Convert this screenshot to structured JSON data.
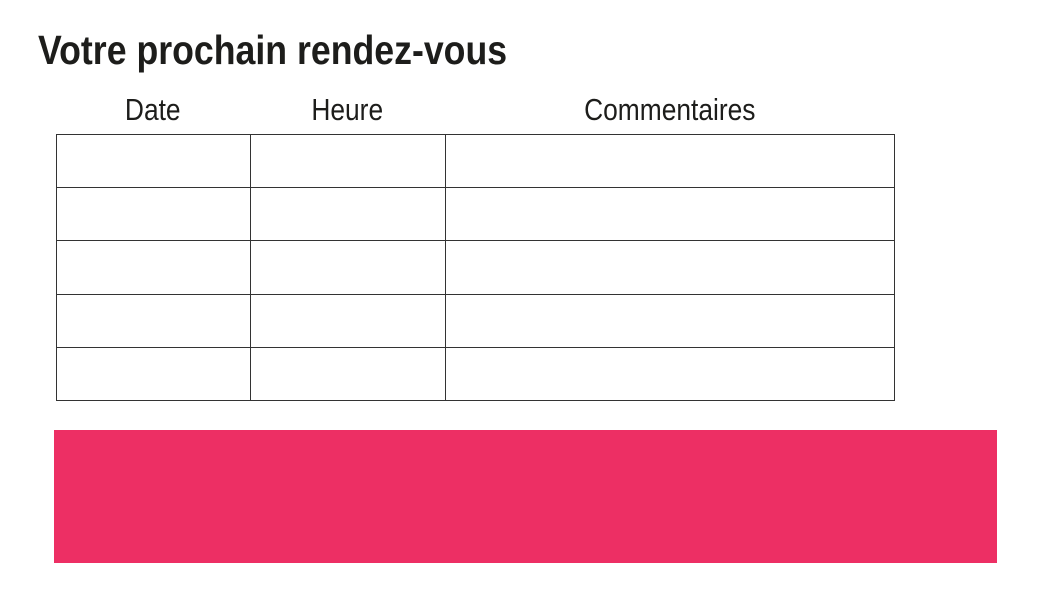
{
  "page": {
    "title": "Votre prochain rendez-vous",
    "background": "#ffffff"
  },
  "colors": {
    "text": "#1d1d1b",
    "table_border": "#333333",
    "banner_pink": "#ed2f64"
  },
  "appointment_table": {
    "headers": [
      "Date",
      "Heure",
      "Commentaires"
    ],
    "rows": [
      [
        "",
        "",
        ""
      ],
      [
        "",
        "",
        ""
      ],
      [
        "",
        "",
        ""
      ],
      [
        "",
        "",
        ""
      ],
      [
        "",
        "",
        ""
      ]
    ]
  }
}
